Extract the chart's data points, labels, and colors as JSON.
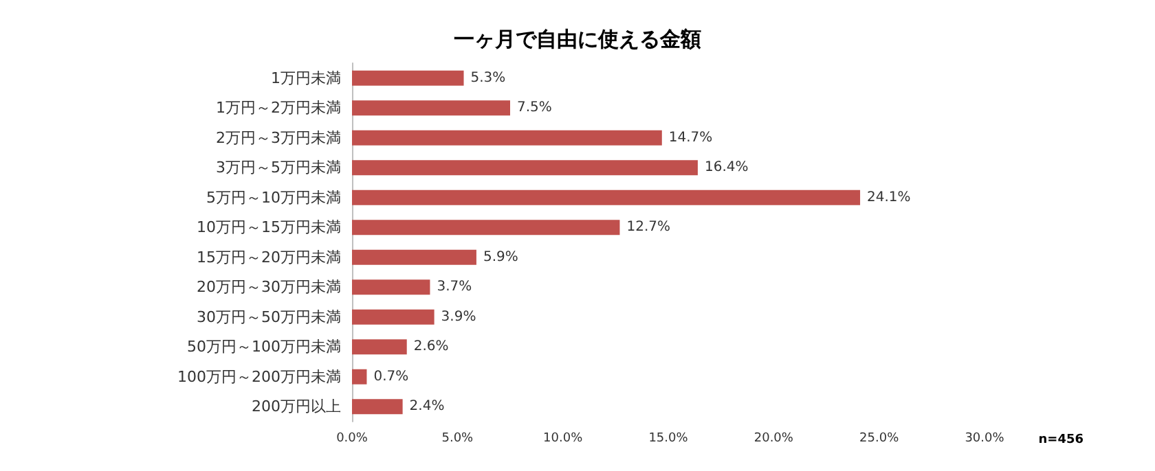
{
  "chart_data": {
    "type": "bar",
    "orientation": "horizontal",
    "title": "一ヶ月で自由に使える金額",
    "categories": [
      "1万円未満",
      "1万円～2万円未満",
      "2万円～3万円未満",
      "3万円～5万円未満",
      "5万円～10万円未満",
      "10万円～15万円未満",
      "15万円～20万円未満",
      "20万円～30万円未満",
      "30万円～50万円未満",
      "50万円～100万円未満",
      "100万円～200万円未満",
      "200万円以上"
    ],
    "values": [
      5.3,
      7.5,
      14.7,
      16.4,
      24.1,
      12.7,
      5.9,
      3.7,
      3.9,
      2.6,
      0.7,
      2.4
    ],
    "value_labels": [
      "5.3%",
      "7.5%",
      "14.7%",
      "16.4%",
      "24.1%",
      "12.7%",
      "5.9%",
      "3.7%",
      "3.9%",
      "2.6%",
      "0.7%",
      "2.4%"
    ],
    "color": "#c0504d",
    "xlim": [
      0,
      30
    ],
    "xticks": [
      {
        "value": 0,
        "label": "0.0%"
      },
      {
        "value": 5,
        "label": "5.0%"
      },
      {
        "value": 10,
        "label": "10.0%"
      },
      {
        "value": 15,
        "label": "15.0%"
      },
      {
        "value": 20,
        "label": "20.0%"
      },
      {
        "value": 25,
        "label": "25.0%"
      },
      {
        "value": 30,
        "label": "30.0%"
      }
    ],
    "annotations": [
      "n=456"
    ]
  }
}
